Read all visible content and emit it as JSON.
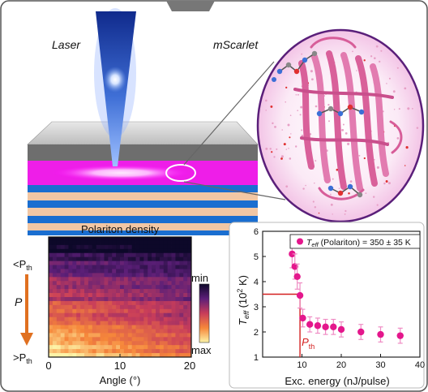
{
  "panel_labels": {
    "laser": "Laser",
    "protein": "mScarlet"
  },
  "heatmap": {
    "title": "Polariton density",
    "y_top": "<P",
    "y_top_sub": "th",
    "y_bottom": ">P",
    "y_bottom_sub": "th",
    "arrow_label": "P",
    "colorbar_top": "min",
    "colorbar_bottom": "max",
    "xlabel": "Angle (°)",
    "x_ticks": [
      "0",
      "10",
      "20"
    ]
  },
  "chart_data": {
    "type": "scatter",
    "title": "",
    "xlabel": "Exc. energy (nJ/pulse)",
    "ylabel": "T",
    "ylabel_sub": "eff",
    "ylabel_unit": " (10",
    "ylabel_exp": "2",
    "ylabel_close": " K)",
    "xlim": [
      0,
      40
    ],
    "ylim": [
      1,
      6
    ],
    "x_ticks": [
      10,
      20,
      30,
      40
    ],
    "y_ticks": [
      1,
      2,
      3,
      4,
      5,
      6
    ],
    "legend": {
      "symbol": "T",
      "symbol_sub": "eff",
      "text": " (Polariton) = 350 ± 35 K",
      "placement": "top-right"
    },
    "series": [
      {
        "x": [
          7.5,
          8.2,
          8.8,
          9.5,
          10.2,
          12,
          14,
          16,
          18,
          20,
          25,
          30,
          35
        ],
        "y": [
          5.1,
          4.6,
          4.2,
          3.45,
          2.55,
          2.3,
          2.25,
          2.2,
          2.2,
          2.1,
          2.0,
          1.9,
          1.85
        ],
        "err": [
          0.55,
          0.5,
          0.5,
          0.5,
          0.35,
          0.3,
          0.3,
          0.3,
          0.3,
          0.3,
          0.3,
          0.3,
          0.3
        ]
      }
    ],
    "threshold": {
      "x": 9.5,
      "y": 3.5,
      "label": "P",
      "label_sub": "th"
    },
    "colors": {
      "marker": "#e4178c",
      "error": "#ef8cc4",
      "threshold": "#d42020",
      "frame": "#111111"
    }
  }
}
